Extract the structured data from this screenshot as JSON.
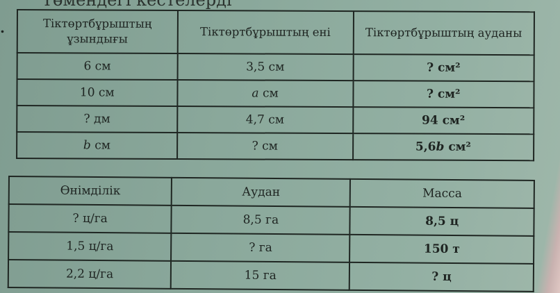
{
  "page": {
    "heading_fragment": "Төмендегі кестелерді",
    "exercise_number": "."
  },
  "table1": {
    "headers": [
      "Тіктөртбұрыштың ұзындығы",
      "Тіктөртбұрыштың ені",
      "Тіктөртбұрыштың ауданы"
    ],
    "rows": [
      [
        {
          "text": "6 см"
        },
        {
          "text": "3,5 см"
        },
        {
          "text": "? см²",
          "bold": true
        }
      ],
      [
        {
          "text": "10 см"
        },
        {
          "var": "a",
          "text": " см"
        },
        {
          "text": "? см²",
          "bold": true
        }
      ],
      [
        {
          "text": "? дм"
        },
        {
          "text": "4,7 см"
        },
        {
          "text": "94 см²",
          "bold": true
        }
      ],
      [
        {
          "var": "b",
          "text": " см"
        },
        {
          "text": "? см"
        },
        {
          "prefix": "5,6",
          "var": "b",
          "text": " см²",
          "bold": true
        }
      ]
    ]
  },
  "table2": {
    "headers": [
      "Өнімділік",
      "Аудан",
      "Масса"
    ],
    "rows": [
      [
        {
          "text": "? ц/га"
        },
        {
          "text": "8,5 га"
        },
        {
          "text": "8,5 ц",
          "bold": true
        }
      ],
      [
        {
          "text": "1,5 ц/га"
        },
        {
          "text": "? га"
        },
        {
          "text": "150 т",
          "bold": true
        }
      ],
      [
        {
          "text": "2,2 ц/га"
        },
        {
          "text": "15 га"
        },
        {
          "text": "? ц",
          "bold": true
        }
      ]
    ]
  }
}
